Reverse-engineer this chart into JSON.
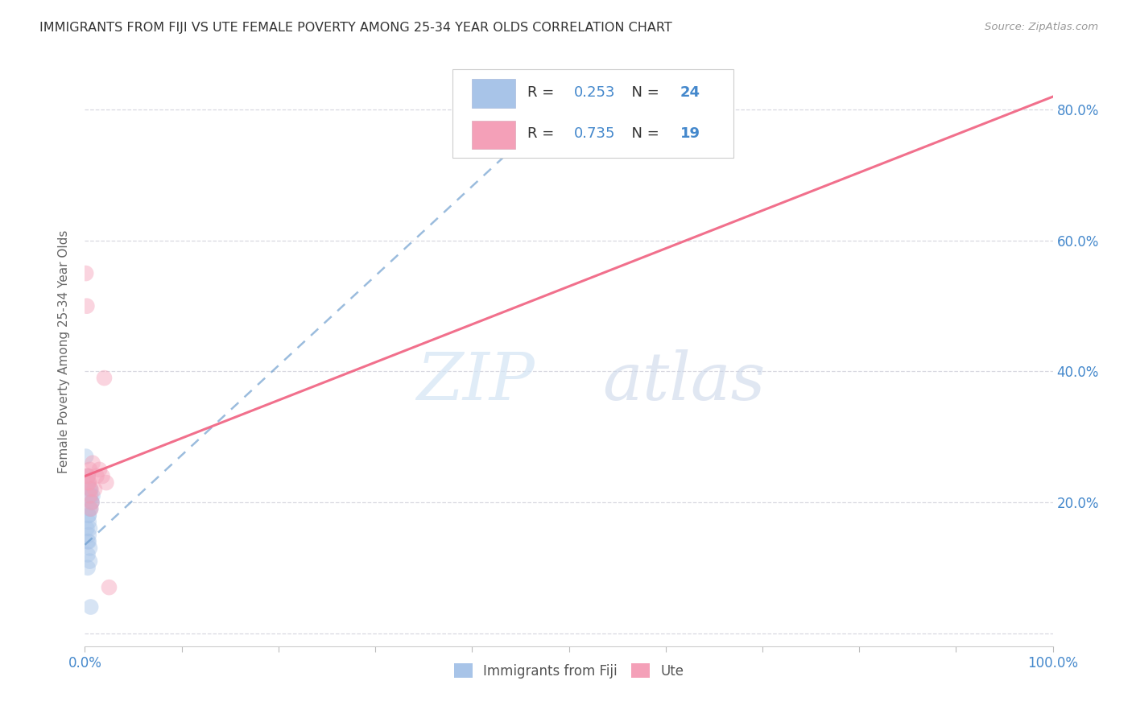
{
  "title": "IMMIGRANTS FROM FIJI VS UTE FEMALE POVERTY AMONG 25-34 YEAR OLDS CORRELATION CHART",
  "source": "Source: ZipAtlas.com",
  "ylabel": "Female Poverty Among 25-34 Year Olds",
  "xlim": [
    0.0,
    1.0
  ],
  "ylim": [
    -0.02,
    0.88
  ],
  "xticks": [
    0.0,
    0.1,
    0.2,
    0.3,
    0.4,
    0.5,
    0.6,
    0.7,
    0.8,
    0.9,
    1.0
  ],
  "xticklabels": [
    "0.0%",
    "",
    "",
    "",
    "",
    "",
    "",
    "",
    "",
    "",
    "100.0%"
  ],
  "yticks": [
    0.0,
    0.2,
    0.4,
    0.6,
    0.8
  ],
  "yticklabels": [
    "",
    "20.0%",
    "40.0%",
    "60.0%",
    "80.0%"
  ],
  "fiji_R": "0.253",
  "fiji_N": "24",
  "ute_R": "0.735",
  "ute_N": "19",
  "fiji_color": "#a8c4e8",
  "ute_color": "#f4a0b8",
  "fiji_line_color": "#6699cc",
  "ute_line_color": "#f06080",
  "fiji_scatter_x": [
    0.001,
    0.003,
    0.004,
    0.005,
    0.006,
    0.002,
    0.007,
    0.003,
    0.004,
    0.005,
    0.003,
    0.004,
    0.006,
    0.005,
    0.003,
    0.004,
    0.005,
    0.006,
    0.007,
    0.008,
    0.003,
    0.004,
    0.005,
    0.006
  ],
  "fiji_scatter_y": [
    0.27,
    0.24,
    0.18,
    0.22,
    0.21,
    0.16,
    0.2,
    0.23,
    0.15,
    0.19,
    0.14,
    0.17,
    0.22,
    0.16,
    0.12,
    0.18,
    0.13,
    0.19,
    0.2,
    0.21,
    0.1,
    0.14,
    0.11,
    0.04
  ],
  "ute_scatter_x": [
    0.001,
    0.002,
    0.003,
    0.005,
    0.004,
    0.006,
    0.007,
    0.008,
    0.01,
    0.003,
    0.004,
    0.005,
    0.006,
    0.015,
    0.02,
    0.018,
    0.022,
    0.025,
    0.012
  ],
  "ute_scatter_y": [
    0.55,
    0.5,
    0.24,
    0.25,
    0.23,
    0.22,
    0.2,
    0.26,
    0.22,
    0.24,
    0.23,
    0.21,
    0.19,
    0.25,
    0.39,
    0.24,
    0.23,
    0.07,
    0.24
  ],
  "fiji_trendline_x": [
    0.0,
    0.5
  ],
  "fiji_trendline_y": [
    0.135,
    0.82
  ],
  "ute_trendline_x": [
    0.0,
    1.0
  ],
  "ute_trendline_y": [
    0.24,
    0.82
  ],
  "watermark_zip": "ZIP",
  "watermark_atlas": "atlas",
  "background_color": "#ffffff",
  "grid_color": "#d8d8e0",
  "title_color": "#333333",
  "axis_label_color": "#666666",
  "tick_color": "#4488cc",
  "legend_fiji_label": "Immigrants from Fiji",
  "legend_ute_label": "Ute",
  "marker_size": 200,
  "marker_alpha": 0.45
}
